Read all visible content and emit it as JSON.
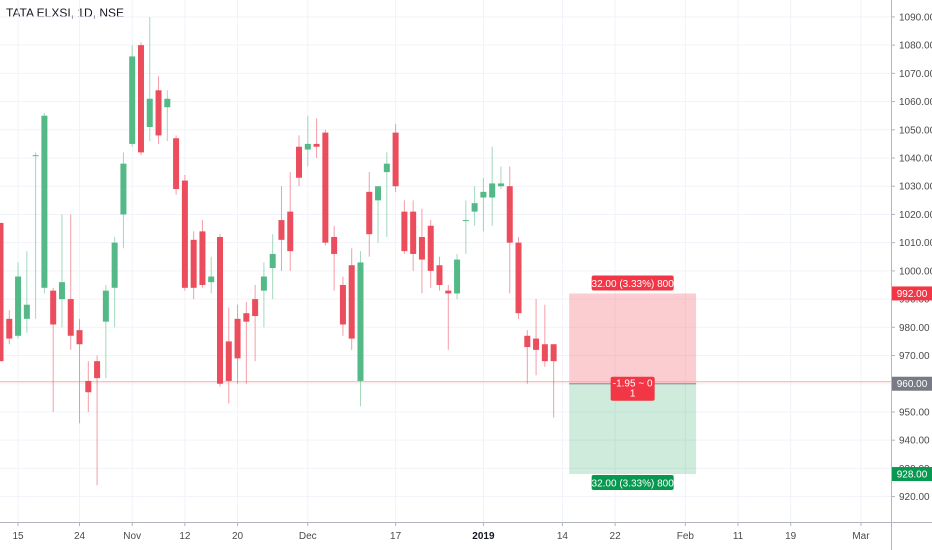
{
  "title": "TATA ELXSI, 1D, NSE",
  "colors": {
    "up": "#53b987",
    "down": "#eb4d5c",
    "grid": "#f0f3fa",
    "axis": "#b2b5be",
    "price_line": "#f7a9a9"
  },
  "chart_data": {
    "type": "candlestick",
    "ylim": [
      911,
      1096
    ],
    "y_ticks": [
      920,
      930,
      940,
      950,
      960,
      970,
      980,
      990,
      1000,
      1010,
      1020,
      1030,
      1040,
      1050,
      1060,
      1070,
      1080,
      1090
    ],
    "x_ticks": [
      {
        "label": "15",
        "bar": 2,
        "bold": false
      },
      {
        "label": "24",
        "bar": 9,
        "bold": false
      },
      {
        "label": "Nov",
        "bar": 15,
        "bold": false
      },
      {
        "label": "12",
        "bar": 21,
        "bold": false
      },
      {
        "label": "20",
        "bar": 27,
        "bold": false
      },
      {
        "label": "Dec",
        "bar": 35,
        "bold": false
      },
      {
        "label": "17",
        "bar": 45,
        "bold": false
      },
      {
        "label": "2019",
        "bar": 55,
        "bold": true
      },
      {
        "label": "14",
        "bar": 64,
        "bold": false
      },
      {
        "label": "22",
        "bar": 70,
        "bold": false
      },
      {
        "label": "Feb",
        "bar": 78,
        "bold": false
      },
      {
        "label": "11",
        "bar": 84,
        "bold": false
      },
      {
        "label": "19",
        "bar": 90,
        "bold": false
      },
      {
        "label": "Mar",
        "bar": 98,
        "bold": false
      }
    ],
    "candles": [
      [
        1017,
        1017,
        968,
        968
      ],
      [
        983,
        986,
        974,
        976
      ],
      [
        977,
        1003,
        976,
        998
      ],
      [
        983,
        1007,
        978,
        988
      ],
      [
        1041,
        1042,
        983,
        1041
      ],
      [
        994,
        1056,
        992,
        1055
      ],
      [
        993,
        994,
        950,
        981
      ],
      [
        990,
        1020,
        980,
        996
      ],
      [
        990,
        1020,
        972,
        977
      ],
      [
        979,
        983,
        946,
        974
      ],
      [
        961,
        968,
        950,
        957
      ],
      [
        968,
        970,
        924,
        962
      ],
      [
        982,
        995,
        962,
        993
      ],
      [
        994,
        1012,
        980,
        1010
      ],
      [
        1020,
        1042,
        1008,
        1038
      ],
      [
        1045,
        1080,
        1044,
        1076
      ],
      [
        1080,
        1081,
        1041,
        1042
      ],
      [
        1051,
        1090,
        1046,
        1061
      ],
      [
        1064,
        1069,
        1045,
        1048
      ],
      [
        1058,
        1064,
        1046,
        1061
      ],
      [
        1047,
        1048,
        1027,
        1029
      ],
      [
        1032,
        1034,
        993,
        994
      ],
      [
        1011,
        1014,
        990,
        994
      ],
      [
        1014,
        1018,
        994,
        995
      ],
      [
        996,
        1005,
        992,
        998
      ],
      [
        1012,
        1013,
        959,
        960
      ],
      [
        975,
        987,
        953,
        961
      ],
      [
        983,
        988,
        960,
        969
      ],
      [
        985,
        989,
        960,
        982
      ],
      [
        990,
        995,
        968,
        984
      ],
      [
        993,
        1003,
        980,
        998
      ],
      [
        1001,
        1013,
        990,
        1006
      ],
      [
        1018,
        1030,
        1000,
        1011
      ],
      [
        1021,
        1035,
        1000,
        1007
      ],
      [
        1044,
        1048,
        1030,
        1033
      ],
      [
        1043,
        1055,
        1037,
        1045
      ],
      [
        1045,
        1054,
        1040,
        1044
      ],
      [
        1049,
        1050,
        1009,
        1010
      ],
      [
        1012,
        1016,
        993,
        1006
      ],
      [
        995,
        998,
        977,
        981
      ],
      [
        1002,
        1008,
        972,
        976
      ],
      [
        961,
        1007,
        952,
        1003
      ],
      [
        1028,
        1035,
        1005,
        1013
      ],
      [
        1025,
        1030,
        1010,
        1030
      ],
      [
        1035,
        1042,
        1012,
        1038
      ],
      [
        1049,
        1052,
        1028,
        1030
      ],
      [
        1021,
        1025,
        1006,
        1007
      ],
      [
        1021,
        1025,
        1000,
        1006
      ],
      [
        1012,
        1022,
        992,
        1004
      ],
      [
        1016,
        1018,
        994,
        1000
      ],
      [
        1002,
        1005,
        993,
        995
      ],
      [
        993,
        995,
        972,
        992
      ],
      [
        992,
        1006,
        990,
        1004
      ],
      [
        1018,
        1025,
        1006,
        1018
      ],
      [
        1021,
        1030,
        1016,
        1024
      ],
      [
        1026,
        1033,
        1014,
        1028
      ],
      [
        1026,
        1044,
        1016,
        1031
      ],
      [
        1030,
        1037,
        1029,
        1031
      ],
      [
        1030,
        1037,
        992,
        1010
      ],
      [
        1010,
        1012,
        983,
        985
      ],
      [
        977,
        979,
        960,
        973
      ],
      [
        976,
        990,
        963,
        972
      ],
      [
        974,
        988,
        966,
        968
      ],
      [
        974,
        974,
        948,
        968
      ]
    ],
    "position": {
      "entry": 960.0,
      "target": 992.0,
      "stop": 928.0,
      "start_bar": 65,
      "end_bar": 79,
      "target_label": "32.00 (3.33%) 800",
      "stop_label": "32.00 (3.33%) 800",
      "center_line1": "-1.95 ~ 0",
      "center_line2": "1"
    },
    "price_labels": [
      {
        "text": "992.00",
        "value": 992,
        "color": "#f23645"
      },
      {
        "text": "960.00",
        "value": 960,
        "color": "#787b86"
      },
      {
        "text": "928.00",
        "value": 928,
        "color": "#089950"
      }
    ]
  }
}
